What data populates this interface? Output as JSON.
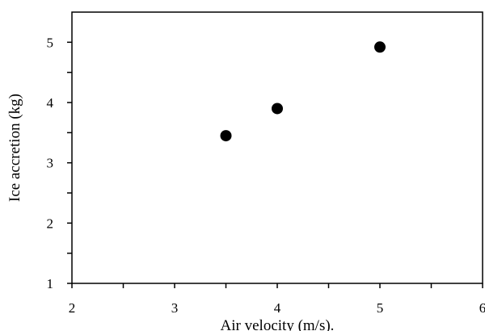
{
  "chart_data": {
    "type": "scatter",
    "title": "",
    "xlabel": "Air velocity (m/s).",
    "ylabel": "Ice accretion (kg)",
    "xlim": [
      2,
      6
    ],
    "ylim": [
      1,
      5.5
    ],
    "x_ticks": [
      2,
      3,
      4,
      5,
      6
    ],
    "y_ticks": [
      1,
      2,
      3,
      4,
      5
    ],
    "x_tick_labels": [
      "2",
      "3",
      "4",
      "5",
      "6"
    ],
    "y_tick_labels": [
      "1",
      "2",
      "3",
      "4",
      "5"
    ],
    "grid": false,
    "legend": "none",
    "marker_color": "#000000",
    "series": [
      {
        "x": [
          3.5,
          4,
          5
        ],
        "y": [
          3.45,
          3.9,
          4.92
        ]
      }
    ]
  }
}
